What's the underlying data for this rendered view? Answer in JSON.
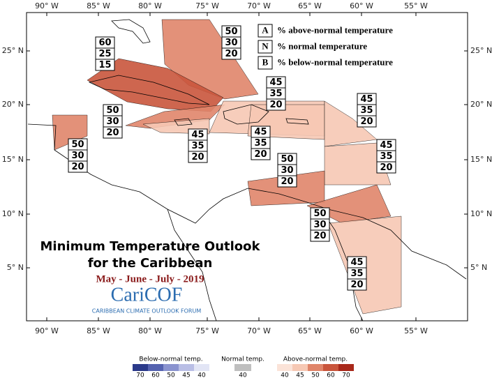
{
  "axes": {
    "lon_ticks": [
      "90° W",
      "85° W",
      "80° W",
      "75° W",
      "70° W",
      "65° W",
      "60° W",
      "55° W"
    ],
    "lat_ticks": [
      "25° N",
      "20° N",
      "15° N",
      "10° N",
      "5° N"
    ]
  },
  "key": [
    {
      "letter": "A",
      "text": "% above-normal temperature"
    },
    {
      "letter": "N",
      "text": "% normal temperature"
    },
    {
      "letter": "B",
      "text": "% below-normal temperature"
    }
  ],
  "regions": [
    {
      "above": 50,
      "normal": 30,
      "below": 20
    },
    {
      "above": 60,
      "normal": 25,
      "below": 15
    },
    {
      "above": 50,
      "normal": 30,
      "below": 20
    },
    {
      "above": 50,
      "normal": 30,
      "below": 20
    },
    {
      "above": 45,
      "normal": 35,
      "below": 20
    },
    {
      "above": 45,
      "normal": 35,
      "below": 20
    },
    {
      "above": 45,
      "normal": 35,
      "below": 20
    },
    {
      "above": 45,
      "normal": 35,
      "below": 20
    },
    {
      "above": 45,
      "normal": 35,
      "below": 20
    },
    {
      "above": 50,
      "normal": 30,
      "below": 20
    },
    {
      "above": 50,
      "normal": 30,
      "below": 20
    },
    {
      "above": 45,
      "normal": 35,
      "below": 20
    }
  ],
  "title": {
    "line1": "Minimum Temperature Outlook",
    "line2": "for the Caribbean",
    "period": "May - June - July - 2019"
  },
  "logo": {
    "name": "CariCOF",
    "subtitle": "CARIBBEAN CLIMATE OUTLOOK FORUM"
  },
  "legend": {
    "below": {
      "label": "Below-normal temp.",
      "ticks": [
        70,
        60,
        50,
        45,
        40
      ],
      "colors": [
        "#2b3a8a",
        "#5563b0",
        "#8a93cf",
        "#b9bee5",
        "#e2e5f5"
      ]
    },
    "normal": {
      "label": "Normal temp.",
      "ticks": [
        40
      ],
      "colors": [
        "#bfbfbf"
      ]
    },
    "above": {
      "label": "Above-normal temp.",
      "ticks": [
        40,
        45,
        50,
        60,
        70
      ],
      "colors": [
        "#fbe3d8",
        "#f6c8b4",
        "#e0856a",
        "#c9553c",
        "#a8281a"
      ]
    }
  }
}
